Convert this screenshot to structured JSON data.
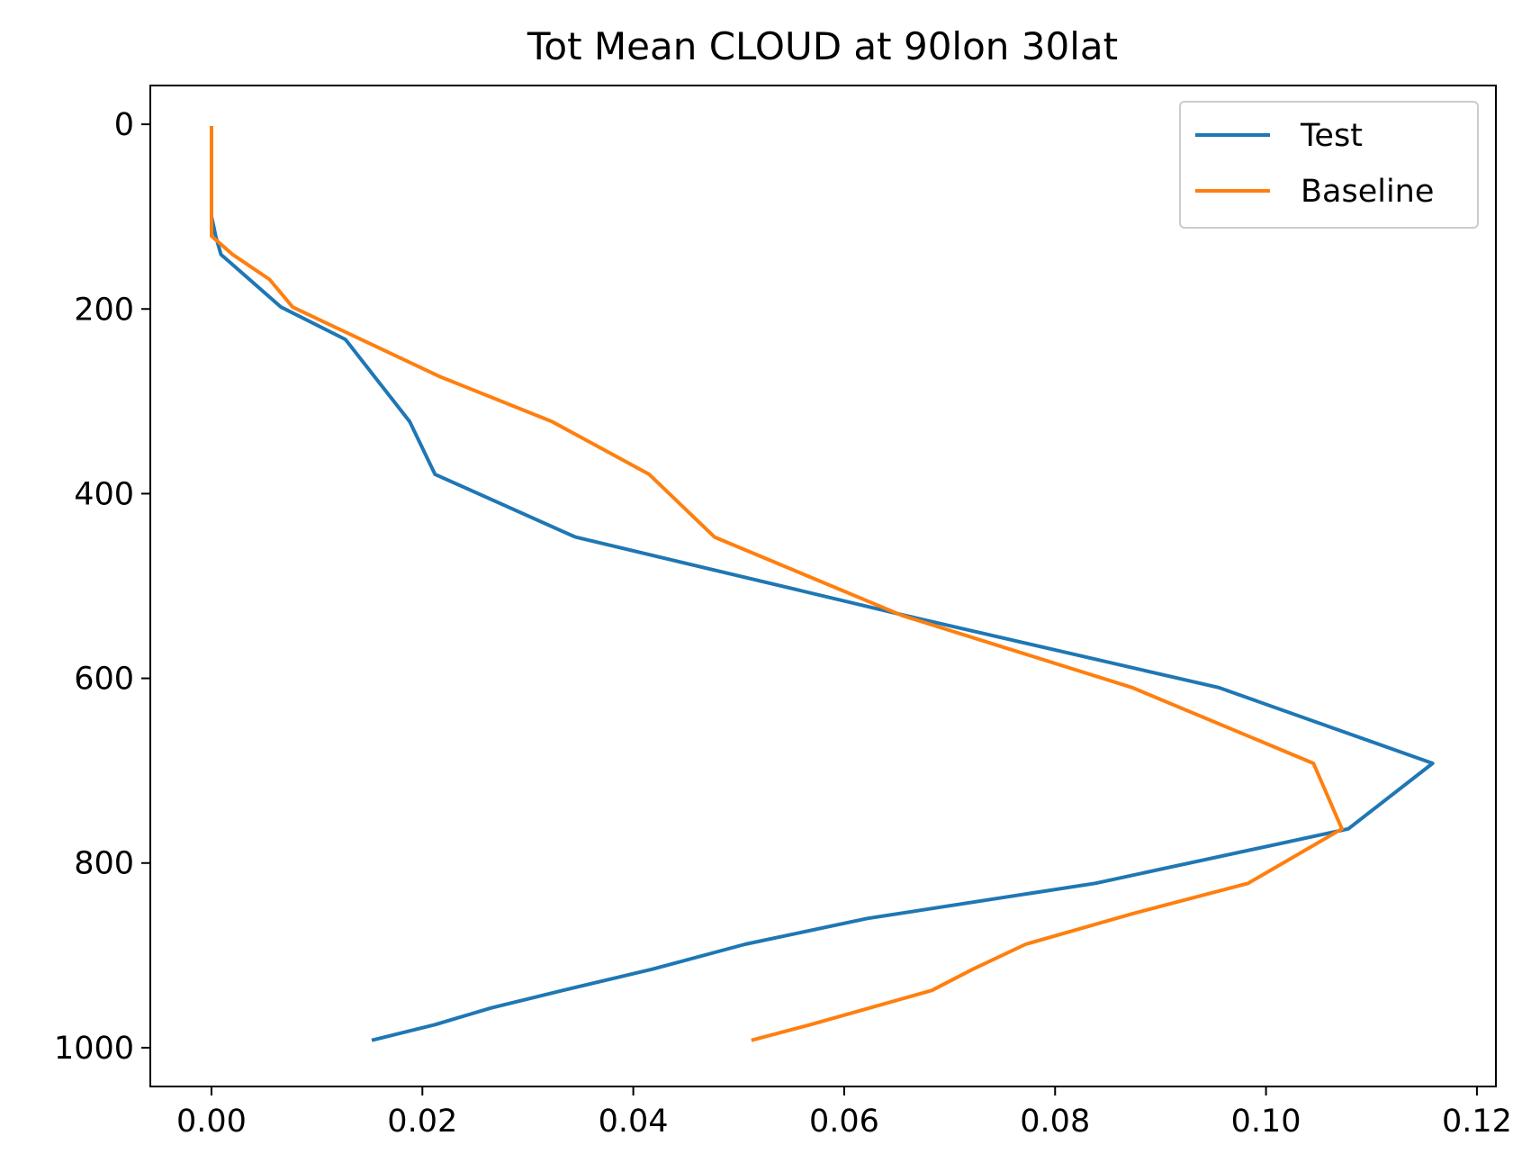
{
  "chart_data": {
    "type": "line",
    "title": "Tot Mean CLOUD at 90lon 30lat",
    "xlabel": "",
    "ylabel": "",
    "xlim": [
      -0.0058,
      0.1218
    ],
    "ylim": [
      1042,
      -42
    ],
    "y_inverted": true,
    "grid": false,
    "legend_position": "top-right",
    "xticks": [
      "0.00",
      "0.02",
      "0.04",
      "0.06",
      "0.08",
      "0.10",
      "0.12"
    ],
    "xtick_values": [
      0.0,
      0.02,
      0.04,
      0.06,
      0.08,
      0.1,
      0.12
    ],
    "yticks": [
      "0",
      "200",
      "400",
      "600",
      "800",
      "1000"
    ],
    "ytick_values": [
      0,
      200,
      400,
      600,
      800,
      1000
    ],
    "series": [
      {
        "name": "Test",
        "color": "#1f77b4",
        "points": [
          [
            0.0,
            2
          ],
          [
            0.0,
            10
          ],
          [
            0.0,
            20
          ],
          [
            0.0,
            30
          ],
          [
            0.0,
            40
          ],
          [
            0.0,
            50
          ],
          [
            0.0,
            60
          ],
          [
            0.0,
            70
          ],
          [
            0.0,
            80
          ],
          [
            0.0,
            90
          ],
          [
            0.0,
            100
          ],
          [
            0.0002,
            110
          ],
          [
            0.0004,
            121
          ],
          [
            0.0009,
            141
          ],
          [
            0.0036,
            168
          ],
          [
            0.0066,
            198
          ],
          [
            0.0127,
            233
          ],
          [
            0.0188,
            322
          ],
          [
            0.0212,
            379
          ],
          [
            0.0345,
            447
          ],
          [
            0.0658,
            532
          ],
          [
            0.0955,
            610
          ],
          [
            0.1158,
            692
          ],
          [
            0.1078,
            763
          ],
          [
            0.0838,
            822
          ],
          [
            0.0622,
            860
          ],
          [
            0.0506,
            888
          ],
          [
            0.0418,
            915
          ],
          [
            0.0333,
            938
          ],
          [
            0.0265,
            957
          ],
          [
            0.0212,
            975
          ],
          [
            0.0152,
            992
          ]
        ]
      },
      {
        "name": "Baseline",
        "color": "#ff7f0e",
        "points": [
          [
            0.0,
            2
          ],
          [
            0.0,
            10
          ],
          [
            0.0,
            20
          ],
          [
            0.0,
            30
          ],
          [
            0.0,
            40
          ],
          [
            0.0,
            50
          ],
          [
            0.0,
            60
          ],
          [
            0.0,
            70
          ],
          [
            0.0,
            80
          ],
          [
            0.0,
            90
          ],
          [
            0.0,
            100
          ],
          [
            0.0,
            110
          ],
          [
            0.0,
            121
          ],
          [
            0.002,
            141
          ],
          [
            0.0055,
            168
          ],
          [
            0.0077,
            198
          ],
          [
            0.0216,
            273
          ],
          [
            0.0323,
            322
          ],
          [
            0.0415,
            379
          ],
          [
            0.0477,
            447
          ],
          [
            0.0655,
            532
          ],
          [
            0.0873,
            610
          ],
          [
            0.1045,
            692
          ],
          [
            0.1072,
            763
          ],
          [
            0.0983,
            822
          ],
          [
            0.0873,
            855
          ],
          [
            0.0772,
            888
          ],
          [
            0.0722,
            915
          ],
          [
            0.0683,
            938
          ],
          [
            0.0568,
            975
          ],
          [
            0.0512,
            992
          ]
        ]
      }
    ]
  }
}
